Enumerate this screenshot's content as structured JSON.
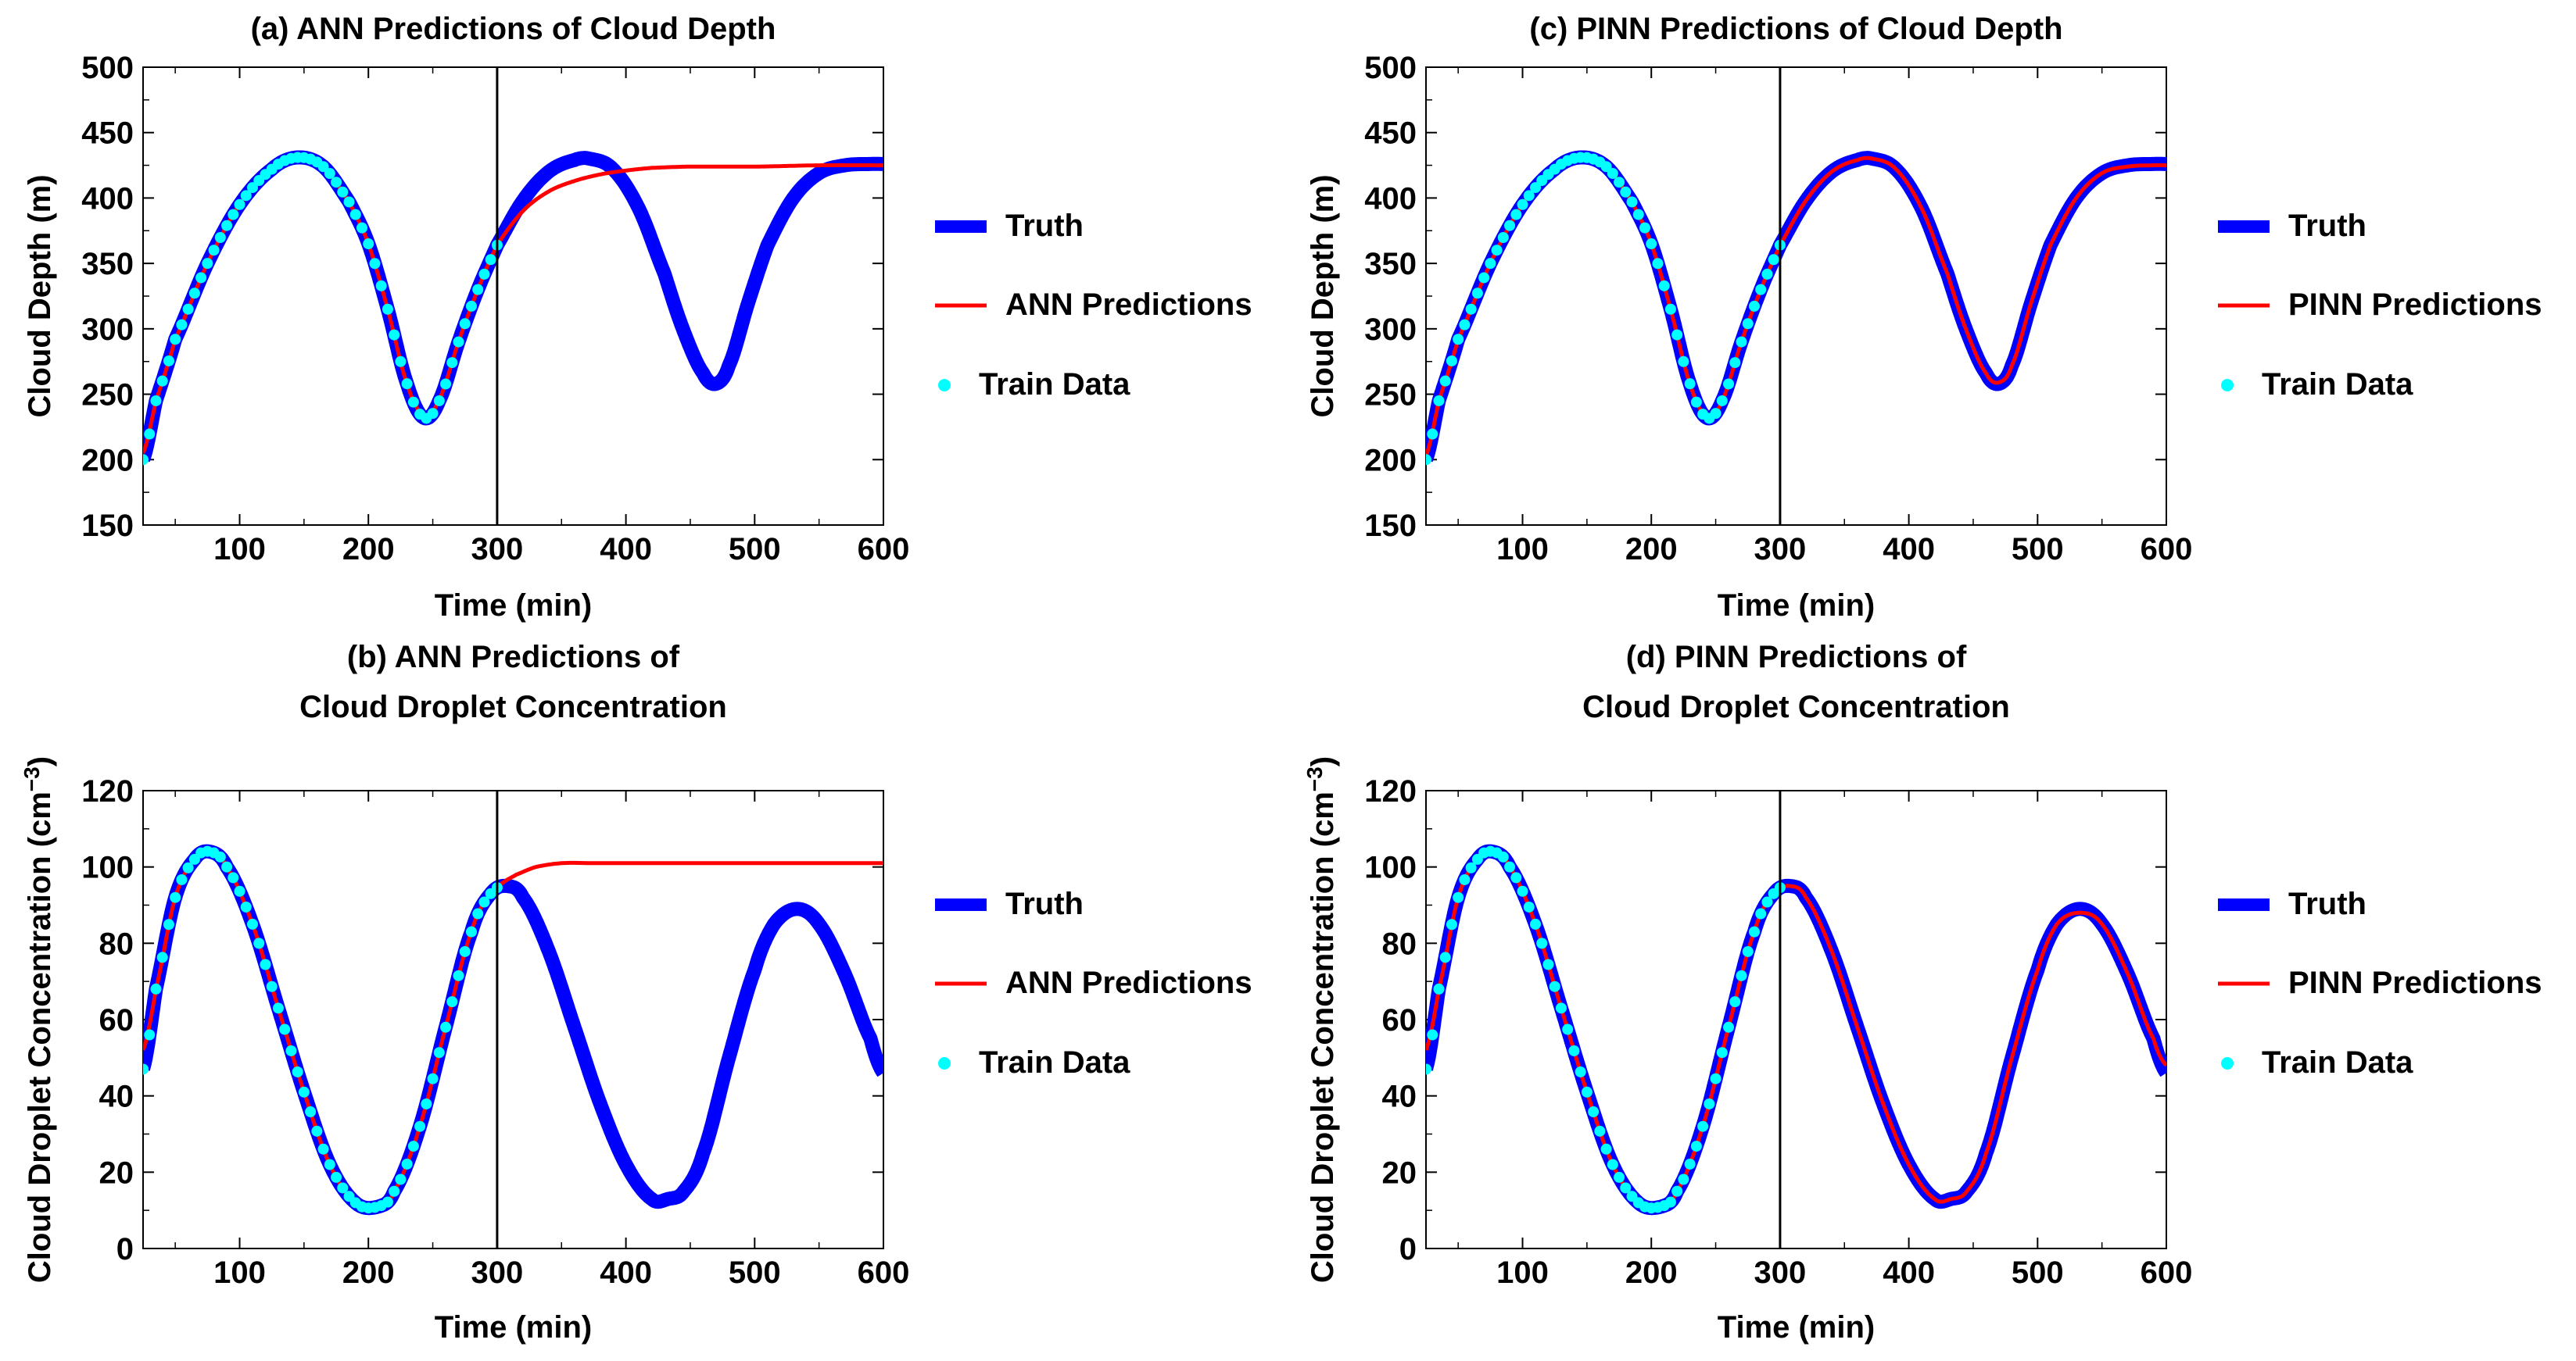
{
  "figure": {
    "description_units": "Time in minutes; cloud depth in m; droplet concentration in cm^-3"
  },
  "chart_data": [
    {
      "id": "a",
      "type": "line",
      "title_lines": [
        "(a) ANN Predictions of Cloud Depth"
      ],
      "xlabel": "Time (min)",
      "ylabel": "Cloud Depth (m)",
      "xlim": [
        25,
        600
      ],
      "ylim": [
        150,
        500
      ],
      "xticks": [
        100,
        200,
        300,
        400,
        500,
        600
      ],
      "yticks": [
        150,
        200,
        250,
        300,
        350,
        400,
        450,
        500
      ],
      "vline_x": 300,
      "legend": [
        "Truth",
        "ANN Predictions",
        "Train Data"
      ],
      "truth": {
        "name": "Truth",
        "color": "#0000ff",
        "x": [
          25,
          35,
          50,
          75,
          100,
          125,
          145,
          165,
          185,
          200,
          215,
          230,
          243,
          255,
          270,
          285,
          300,
          320,
          340,
          360,
          372,
          390,
          410,
          430,
          445,
          460,
          470,
          480,
          495,
          510,
          530,
          550,
          570,
          590,
          600
        ],
        "y": [
          200,
          245,
          292,
          350,
          395,
          422,
          431,
          424,
          397,
          365,
          315,
          258,
          232,
          245,
          290,
          330,
          364,
          398,
          420,
          429,
          430,
          422,
          392,
          342,
          298,
          266,
          258,
          272,
          320,
          364,
          400,
          419,
          425,
          426,
          426
        ]
      },
      "prediction": {
        "name": "ANN Predictions",
        "color": "#ff0000",
        "x": [
          25,
          35,
          50,
          75,
          100,
          125,
          145,
          165,
          185,
          200,
          215,
          230,
          243,
          255,
          270,
          285,
          300,
          320,
          340,
          360,
          380,
          400,
          420,
          450,
          500,
          550,
          600
        ],
        "y": [
          205,
          245,
          292,
          350,
          395,
          422,
          431,
          424,
          397,
          365,
          315,
          258,
          234,
          246,
          290,
          330,
          364,
          390,
          405,
          413,
          418,
          421,
          423,
          424,
          424,
          425,
          425
        ]
      },
      "train_x": [
        25,
        30,
        35,
        40,
        45,
        50,
        55,
        60,
        65,
        70,
        75,
        80,
        85,
        90,
        95,
        100,
        105,
        110,
        115,
        120,
        125,
        130,
        135,
        140,
        145,
        150,
        155,
        160,
        165,
        170,
        175,
        180,
        185,
        190,
        195,
        200,
        205,
        210,
        215,
        220,
        225,
        230,
        235,
        240,
        245,
        250,
        255,
        260,
        265,
        270,
        275,
        280,
        285,
        290,
        295,
        300
      ],
      "train_color": "#00ffff"
    },
    {
      "id": "b",
      "type": "line",
      "title_lines": [
        "(b) ANN Predictions of",
        "Cloud Droplet Concentration"
      ],
      "xlabel": "Time (min)",
      "ylabel": "Cloud Droplet Concentration (cm",
      "ylabel_sup": "−3",
      "ylabel_end": ")",
      "xlim": [
        25,
        600
      ],
      "ylim": [
        0,
        120
      ],
      "xticks": [
        100,
        200,
        300,
        400,
        500,
        600
      ],
      "yticks": [
        0,
        20,
        40,
        60,
        80,
        100,
        120
      ],
      "vline_x": 300,
      "legend": [
        "Truth",
        "ANN Predictions",
        "Train Data"
      ],
      "truth": {
        "name": "Truth",
        "color": "#0000ff",
        "x": [
          25,
          35,
          50,
          65,
          77,
          90,
          110,
          130,
          150,
          170,
          190,
          208,
          220,
          240,
          260,
          280,
          295,
          308,
          320,
          340,
          360,
          380,
          400,
          420,
          433,
          445,
          460,
          480,
          500,
          515,
          533,
          550,
          570,
          590,
          600
        ],
        "y": [
          47,
          68,
          92,
          102,
          104,
          100,
          85,
          63,
          41,
          22,
          12,
          11,
          15,
          32,
          58,
          83,
          93,
          95,
          92,
          78,
          58,
          38,
          22,
          13,
          13,
          15,
          25,
          50,
          73,
          85,
          89,
          85,
          72,
          55,
          46
        ]
      },
      "prediction": {
        "name": "ANN Predictions",
        "color": "#ff0000",
        "x": [
          25,
          35,
          50,
          65,
          77,
          90,
          110,
          130,
          150,
          170,
          190,
          208,
          220,
          240,
          260,
          280,
          295,
          305,
          315,
          330,
          350,
          375,
          400,
          450,
          500,
          550,
          600
        ],
        "y": [
          52,
          68,
          92,
          102,
          104,
          100,
          85,
          63,
          41,
          22,
          12,
          11,
          15,
          32,
          58,
          83,
          93,
          96,
          98,
          100,
          101,
          101,
          101,
          101,
          101,
          101,
          101
        ]
      },
      "train_x": [
        25,
        30,
        35,
        40,
        45,
        50,
        55,
        60,
        65,
        70,
        75,
        80,
        85,
        90,
        95,
        100,
        105,
        110,
        115,
        120,
        125,
        130,
        135,
        140,
        145,
        150,
        155,
        160,
        165,
        170,
        175,
        180,
        185,
        190,
        195,
        200,
        205,
        210,
        215,
        220,
        225,
        230,
        235,
        240,
        245,
        250,
        255,
        260,
        265,
        270,
        275,
        280,
        285,
        290,
        295,
        300
      ],
      "train_color": "#00ffff"
    },
    {
      "id": "c",
      "type": "line",
      "title_lines": [
        "(c) PINN Predictions of Cloud Depth"
      ],
      "xlabel": "Time (min)",
      "ylabel": "Cloud Depth (m)",
      "xlim": [
        25,
        600
      ],
      "ylim": [
        150,
        500
      ],
      "xticks": [
        100,
        200,
        300,
        400,
        500,
        600
      ],
      "yticks": [
        150,
        200,
        250,
        300,
        350,
        400,
        450,
        500
      ],
      "vline_x": 300,
      "legend": [
        "Truth",
        "PINN Predictions",
        "Train Data"
      ],
      "truth": {
        "name": "Truth",
        "color": "#0000ff",
        "x": [
          25,
          35,
          50,
          75,
          100,
          125,
          145,
          165,
          185,
          200,
          215,
          230,
          243,
          255,
          270,
          285,
          300,
          320,
          340,
          360,
          372,
          390,
          410,
          430,
          445,
          460,
          470,
          480,
          495,
          510,
          530,
          550,
          570,
          590,
          600
        ],
        "y": [
          200,
          245,
          292,
          350,
          395,
          422,
          431,
          424,
          397,
          365,
          315,
          258,
          232,
          245,
          290,
          330,
          364,
          398,
          420,
          429,
          430,
          422,
          392,
          342,
          298,
          266,
          258,
          272,
          320,
          364,
          400,
          419,
          425,
          426,
          426
        ]
      },
      "prediction": {
        "name": "PINN Predictions",
        "color": "#ff0000",
        "x": [
          25,
          35,
          50,
          75,
          100,
          125,
          145,
          165,
          185,
          200,
          215,
          230,
          243,
          255,
          270,
          285,
          300,
          320,
          340,
          360,
          372,
          390,
          410,
          430,
          445,
          460,
          470,
          480,
          495,
          510,
          530,
          550,
          570,
          590,
          600
        ],
        "y": [
          203,
          245,
          292,
          350,
          395,
          422,
          431,
          424,
          397,
          365,
          315,
          258,
          233,
          245,
          290,
          330,
          364,
          398,
          420,
          429,
          430,
          422,
          392,
          342,
          298,
          266,
          259,
          272,
          320,
          364,
          400,
          419,
          424,
          425,
          425
        ]
      },
      "train_x": [
        25,
        30,
        35,
        40,
        45,
        50,
        55,
        60,
        65,
        70,
        75,
        80,
        85,
        90,
        95,
        100,
        105,
        110,
        115,
        120,
        125,
        130,
        135,
        140,
        145,
        150,
        155,
        160,
        165,
        170,
        175,
        180,
        185,
        190,
        195,
        200,
        205,
        210,
        215,
        220,
        225,
        230,
        235,
        240,
        245,
        250,
        255,
        260,
        265,
        270,
        275,
        280,
        285,
        290,
        295,
        300
      ],
      "train_color": "#00ffff"
    },
    {
      "id": "d",
      "type": "line",
      "title_lines": [
        "(d) PINN Predictions of",
        "Cloud Droplet Concentration"
      ],
      "xlabel": "Time (min)",
      "ylabel": "Cloud Droplet Concentration (cm",
      "ylabel_sup": "−3",
      "ylabel_end": ")",
      "xlim": [
        25,
        600
      ],
      "ylim": [
        0,
        120
      ],
      "xticks": [
        100,
        200,
        300,
        400,
        500,
        600
      ],
      "yticks": [
        0,
        20,
        40,
        60,
        80,
        100,
        120
      ],
      "vline_x": 300,
      "legend": [
        "Truth",
        "PINN Predictions",
        "Train Data"
      ],
      "truth": {
        "name": "Truth",
        "color": "#0000ff",
        "x": [
          25,
          35,
          50,
          65,
          77,
          90,
          110,
          130,
          150,
          170,
          190,
          208,
          220,
          240,
          260,
          280,
          295,
          308,
          320,
          340,
          360,
          380,
          400,
          420,
          433,
          445,
          460,
          480,
          500,
          515,
          533,
          550,
          570,
          590,
          600
        ],
        "y": [
          47,
          68,
          92,
          102,
          104,
          100,
          85,
          63,
          41,
          22,
          12,
          11,
          15,
          32,
          58,
          83,
          93,
          95,
          92,
          78,
          58,
          38,
          22,
          13,
          13,
          15,
          25,
          50,
          73,
          85,
          89,
          85,
          72,
          55,
          46
        ]
      },
      "prediction": {
        "name": "PINN Predictions",
        "color": "#ff0000",
        "x": [
          25,
          35,
          50,
          65,
          77,
          90,
          110,
          130,
          150,
          170,
          190,
          208,
          220,
          240,
          260,
          280,
          295,
          308,
          320,
          340,
          360,
          380,
          400,
          420,
          433,
          445,
          460,
          480,
          500,
          515,
          533,
          550,
          570,
          590,
          600
        ],
        "y": [
          52,
          68,
          92,
          102,
          104,
          100,
          85,
          63,
          41,
          22,
          12,
          11,
          15,
          32,
          58,
          83,
          93,
          95,
          92,
          78,
          58,
          38,
          22,
          13,
          13,
          15,
          25,
          50,
          73,
          85,
          88,
          85,
          72,
          55,
          48
        ]
      },
      "train_x": [
        25,
        30,
        35,
        40,
        45,
        50,
        55,
        60,
        65,
        70,
        75,
        80,
        85,
        90,
        95,
        100,
        105,
        110,
        115,
        120,
        125,
        130,
        135,
        140,
        145,
        150,
        155,
        160,
        165,
        170,
        175,
        180,
        185,
        190,
        195,
        200,
        205,
        210,
        215,
        220,
        225,
        230,
        235,
        240,
        245,
        250,
        255,
        260,
        265,
        270,
        275,
        280,
        285,
        290,
        295,
        300
      ],
      "train_color": "#00ffff"
    }
  ]
}
